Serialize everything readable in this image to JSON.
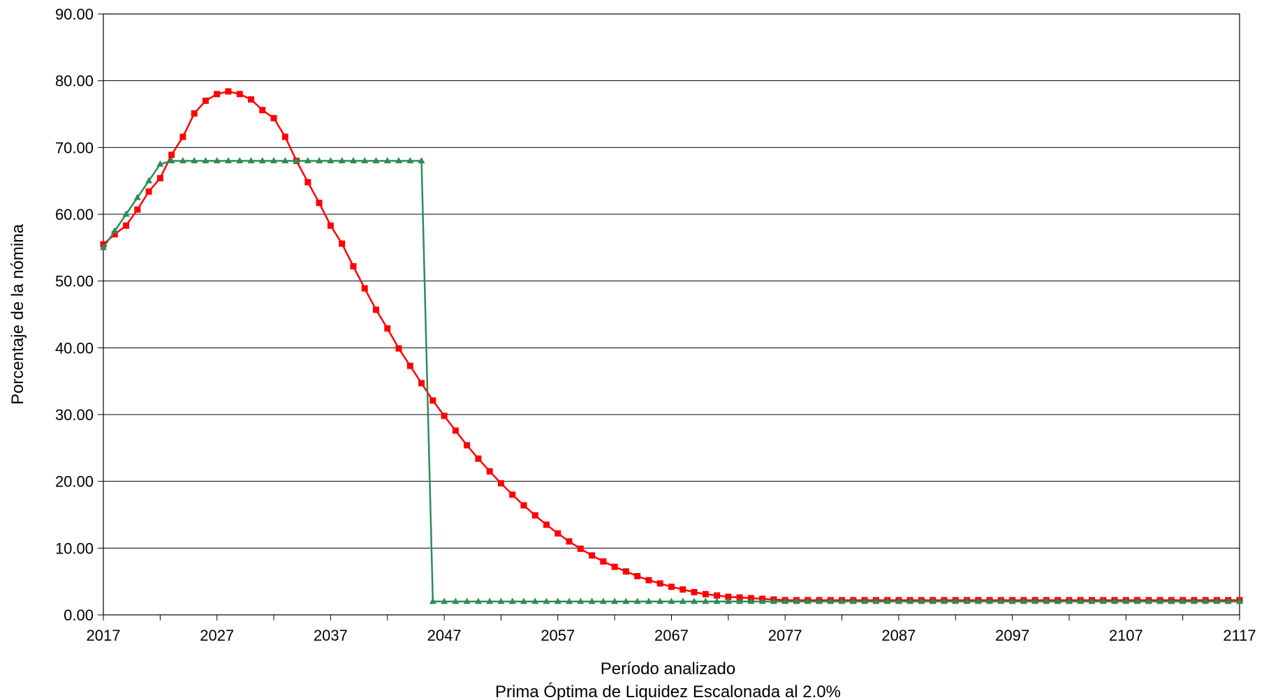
{
  "chart_data": {
    "type": "line",
    "title": "",
    "xlabel": "Período analizado",
    "subtitle": "Prima Óptima de Liquidez Escalonada al 2.0%",
    "ylabel": "Porcentaje de la nómina",
    "xlim": [
      2017,
      2117
    ],
    "ylim": [
      0,
      90
    ],
    "x_ticks": [
      "2017",
      "2027",
      "2037",
      "2047",
      "2057",
      "2067",
      "2077",
      "2087",
      "2097",
      "2107",
      "2117"
    ],
    "y_ticks": [
      "0.00",
      "10.00",
      "20.00",
      "30.00",
      "40.00",
      "50.00",
      "60.00",
      "70.00",
      "80.00",
      "90.00"
    ],
    "grid": "horizontal",
    "legend": "none",
    "series": [
      {
        "color": "#ff0000",
        "marker": "square",
        "x": [
          2017,
          2018,
          2019,
          2020,
          2021,
          2022,
          2023,
          2024,
          2025,
          2026,
          2027,
          2028,
          2029,
          2030,
          2031,
          2032,
          2033,
          2034,
          2035,
          2036,
          2037,
          2038,
          2039,
          2040,
          2041,
          2042,
          2043,
          2044,
          2045,
          2046,
          2047,
          2048,
          2049,
          2050,
          2051,
          2052,
          2053,
          2054,
          2055,
          2056,
          2057,
          2058,
          2059,
          2060,
          2061,
          2062,
          2063,
          2064,
          2065,
          2066,
          2067,
          2068,
          2069,
          2070,
          2071,
          2072,
          2073,
          2074,
          2075,
          2076,
          2077,
          2078,
          2079,
          2080,
          2081,
          2082,
          2083,
          2084,
          2085,
          2086,
          2087,
          2088,
          2089,
          2090,
          2091,
          2092,
          2093,
          2094,
          2095,
          2096,
          2097,
          2098,
          2099,
          2100,
          2101,
          2102,
          2103,
          2104,
          2105,
          2106,
          2107,
          2108,
          2109,
          2110,
          2111,
          2112,
          2113,
          2114,
          2115,
          2116,
          2117
        ],
        "y": [
          55.5,
          57.0,
          58.3,
          60.7,
          63.4,
          65.4,
          68.9,
          71.6,
          75.1,
          77.0,
          78.0,
          78.4,
          78.0,
          77.2,
          75.6,
          74.4,
          71.6,
          68.0,
          64.8,
          61.7,
          58.3,
          55.6,
          52.2,
          48.9,
          45.7,
          42.9,
          39.9,
          37.3,
          34.7,
          32.1,
          29.8,
          27.6,
          25.4,
          23.4,
          21.5,
          19.7,
          18.0,
          16.4,
          14.9,
          13.5,
          12.2,
          11.0,
          9.9,
          8.9,
          8.0,
          7.2,
          6.5,
          5.8,
          5.2,
          4.7,
          4.2,
          3.8,
          3.4,
          3.1,
          2.9,
          2.7,
          2.6,
          2.5,
          2.4,
          2.3,
          2.2,
          2.2,
          2.2,
          2.2,
          2.2,
          2.2,
          2.2,
          2.2,
          2.2,
          2.2,
          2.2,
          2.2,
          2.2,
          2.2,
          2.2,
          2.2,
          2.2,
          2.2,
          2.2,
          2.2,
          2.2,
          2.2,
          2.2,
          2.2,
          2.2,
          2.2,
          2.2,
          2.2,
          2.2,
          2.2,
          2.2,
          2.2,
          2.2,
          2.2,
          2.2,
          2.2,
          2.2,
          2.2,
          2.2,
          2.2,
          2.2
        ]
      },
      {
        "color": "#2e8b57",
        "marker": "triangle",
        "x": [
          2017,
          2018,
          2019,
          2020,
          2021,
          2022,
          2023,
          2024,
          2025,
          2026,
          2027,
          2028,
          2029,
          2030,
          2031,
          2032,
          2033,
          2034,
          2035,
          2036,
          2037,
          2038,
          2039,
          2040,
          2041,
          2042,
          2043,
          2044,
          2045,
          2046,
          2047,
          2048,
          2049,
          2050,
          2051,
          2052,
          2053,
          2054,
          2055,
          2056,
          2057,
          2058,
          2059,
          2060,
          2061,
          2062,
          2063,
          2064,
          2065,
          2066,
          2067,
          2068,
          2069,
          2070,
          2071,
          2072,
          2073,
          2074,
          2075,
          2076,
          2077,
          2078,
          2079,
          2080,
          2081,
          2082,
          2083,
          2084,
          2085,
          2086,
          2087,
          2088,
          2089,
          2090,
          2091,
          2092,
          2093,
          2094,
          2095,
          2096,
          2097,
          2098,
          2099,
          2100,
          2101,
          2102,
          2103,
          2104,
          2105,
          2106,
          2107,
          2108,
          2109,
          2110,
          2111,
          2112,
          2113,
          2114,
          2115,
          2116,
          2117
        ],
        "y": [
          55.0,
          57.5,
          60.0,
          62.5,
          65.0,
          67.5,
          68.0,
          68.0,
          68.0,
          68.0,
          68.0,
          68.0,
          68.0,
          68.0,
          68.0,
          68.0,
          68.0,
          68.0,
          68.0,
          68.0,
          68.0,
          68.0,
          68.0,
          68.0,
          68.0,
          68.0,
          68.0,
          68.0,
          68.0,
          2.0,
          2.0,
          2.0,
          2.0,
          2.0,
          2.0,
          2.0,
          2.0,
          2.0,
          2.0,
          2.0,
          2.0,
          2.0,
          2.0,
          2.0,
          2.0,
          2.0,
          2.0,
          2.0,
          2.0,
          2.0,
          2.0,
          2.0,
          2.0,
          2.0,
          2.0,
          2.0,
          2.0,
          2.0,
          2.0,
          2.0,
          2.0,
          2.0,
          2.0,
          2.0,
          2.0,
          2.0,
          2.0,
          2.0,
          2.0,
          2.0,
          2.0,
          2.0,
          2.0,
          2.0,
          2.0,
          2.0,
          2.0,
          2.0,
          2.0,
          2.0,
          2.0,
          2.0,
          2.0,
          2.0,
          2.0,
          2.0,
          2.0,
          2.0,
          2.0,
          2.0,
          2.0,
          2.0,
          2.0,
          2.0,
          2.0,
          2.0,
          2.0,
          2.0,
          2.0,
          2.0,
          2.0
        ]
      }
    ]
  }
}
